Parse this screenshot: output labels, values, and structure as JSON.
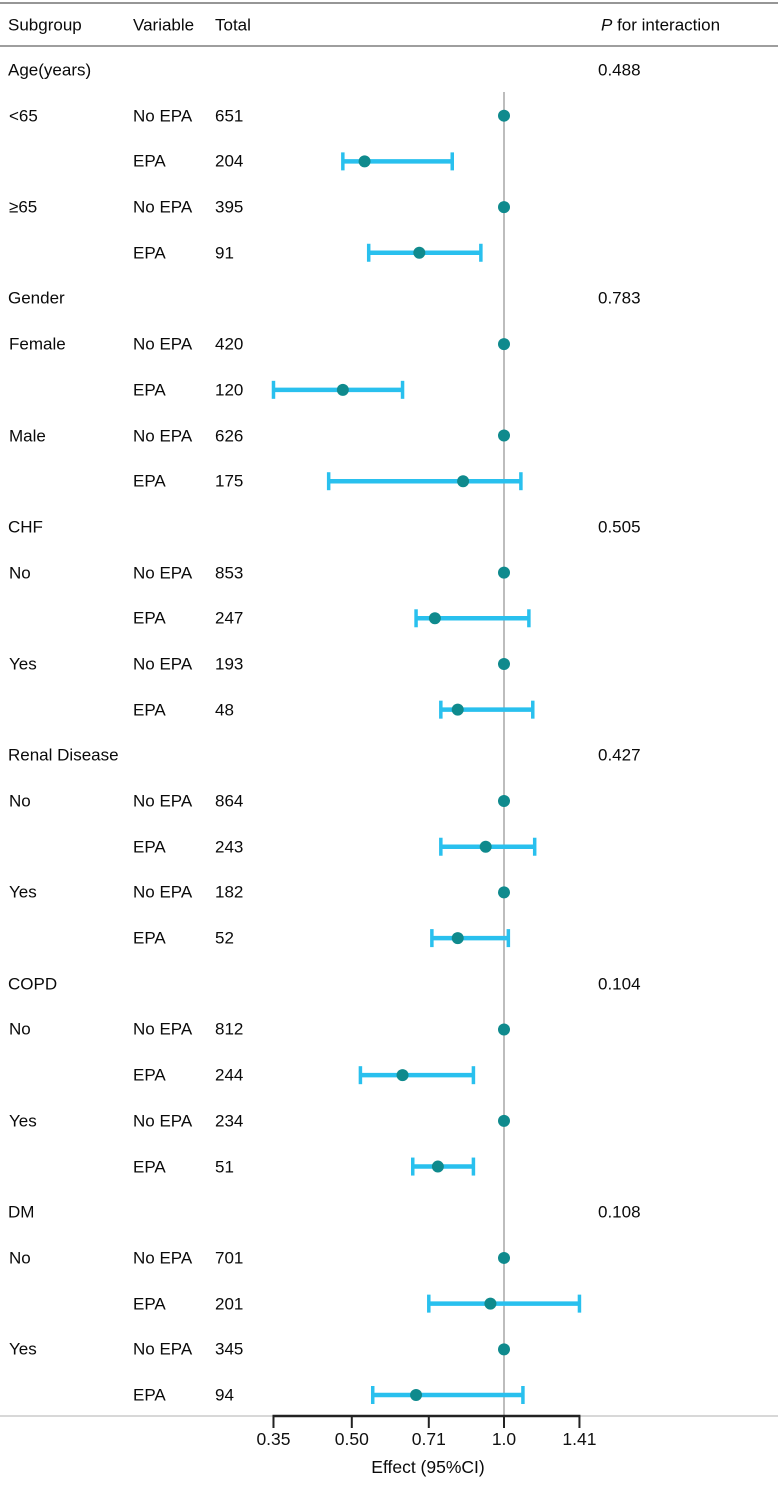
{
  "header": {
    "subgroup": "Subgroup",
    "variable": "Variable",
    "total": "Total",
    "p_italic": "P",
    "p_rest": " for interaction"
  },
  "colors": {
    "ci_line": "#29c0ee",
    "point": "#0f8a8d",
    "reference_line": "#bdbdbd",
    "axis": "#222222",
    "axis_baseline_gray": "#cbcbcb",
    "rule": "#969696"
  },
  "chart_data": {
    "type": "scatter",
    "variant": "forest-plot",
    "title": "",
    "xlabel": "Effect (95%CI)",
    "x_scale": "log2",
    "reference_line": 1.0,
    "x_ticks": [
      0.35,
      0.5,
      0.71,
      1.0,
      1.41
    ],
    "x_tick_labels": [
      "0.35",
      "0.50",
      "0.71",
      "1.0",
      "1.41"
    ],
    "x_range": [
      0.35,
      1.41
    ],
    "grid": false,
    "legend": false,
    "rows": [
      {
        "type": "section",
        "subgroup": "Age(years)",
        "p": "0.488"
      },
      {
        "type": "data",
        "subgroup": "<65",
        "variable": "No EPA",
        "total": "651",
        "ref": true,
        "est": 1.0
      },
      {
        "type": "data",
        "subgroup": "",
        "variable": "EPA",
        "total": "204",
        "est": 0.53,
        "lo": 0.48,
        "hi": 0.79
      },
      {
        "type": "data",
        "subgroup": "≥65",
        "variable": "No EPA",
        "total": "395",
        "ref": true,
        "est": 1.0
      },
      {
        "type": "data",
        "subgroup": "",
        "variable": "EPA",
        "total": "91",
        "est": 0.68,
        "lo": 0.54,
        "hi": 0.9
      },
      {
        "type": "section",
        "subgroup": "Gender",
        "p": "0.783"
      },
      {
        "type": "data",
        "subgroup": "Female",
        "variable": "No EPA",
        "total": "420",
        "ref": true,
        "est": 1.0
      },
      {
        "type": "data",
        "subgroup": "",
        "variable": "EPA",
        "total": "120",
        "est": 0.48,
        "lo": 0.35,
        "hi": 0.63
      },
      {
        "type": "data",
        "subgroup": "Male",
        "variable": "No EPA",
        "total": "626",
        "ref": true,
        "est": 1.0
      },
      {
        "type": "data",
        "subgroup": "",
        "variable": "EPA",
        "total": "175",
        "est": 0.83,
        "lo": 0.45,
        "hi": 1.08
      },
      {
        "type": "section",
        "subgroup": "CHF",
        "p": "0.505"
      },
      {
        "type": "data",
        "subgroup": "No",
        "variable": "No EPA",
        "total": "853",
        "ref": true,
        "est": 1.0
      },
      {
        "type": "data",
        "subgroup": "",
        "variable": "EPA",
        "total": "247",
        "est": 0.73,
        "lo": 0.67,
        "hi": 1.12
      },
      {
        "type": "data",
        "subgroup": "Yes",
        "variable": "No EPA",
        "total": "193",
        "ref": true,
        "est": 1.0
      },
      {
        "type": "data",
        "subgroup": "",
        "variable": "EPA",
        "total": "48",
        "est": 0.81,
        "lo": 0.75,
        "hi": 1.14
      },
      {
        "type": "section",
        "subgroup": "Renal Disease",
        "p": "0.427"
      },
      {
        "type": "data",
        "subgroup": "No",
        "variable": "No EPA",
        "total": "864",
        "ref": true,
        "est": 1.0
      },
      {
        "type": "data",
        "subgroup": "",
        "variable": "EPA",
        "total": "243",
        "est": 0.92,
        "lo": 0.75,
        "hi": 1.15
      },
      {
        "type": "data",
        "subgroup": "Yes",
        "variable": "No EPA",
        "total": "182",
        "ref": true,
        "est": 1.0
      },
      {
        "type": "data",
        "subgroup": "",
        "variable": "EPA",
        "total": "52",
        "est": 0.81,
        "lo": 0.72,
        "hi": 1.02
      },
      {
        "type": "section",
        "subgroup": "COPD",
        "p": "0.104"
      },
      {
        "type": "data",
        "subgroup": "No",
        "variable": "No EPA",
        "total": "812",
        "ref": true,
        "est": 1.0
      },
      {
        "type": "data",
        "subgroup": "",
        "variable": "EPA",
        "total": "244",
        "est": 0.63,
        "lo": 0.52,
        "hi": 0.87
      },
      {
        "type": "data",
        "subgroup": "Yes",
        "variable": "No EPA",
        "total": "234",
        "ref": true,
        "est": 1.0
      },
      {
        "type": "data",
        "subgroup": "",
        "variable": "EPA",
        "total": "51",
        "est": 0.74,
        "lo": 0.66,
        "hi": 0.87
      },
      {
        "type": "section",
        "subgroup": "DM",
        "p": "0.108"
      },
      {
        "type": "data",
        "subgroup": "No",
        "variable": "No EPA",
        "total": "701",
        "ref": true,
        "est": 1.0
      },
      {
        "type": "data",
        "subgroup": "",
        "variable": "EPA",
        "total": "201",
        "est": 0.94,
        "lo": 0.71,
        "hi": 1.41
      },
      {
        "type": "data",
        "subgroup": "Yes",
        "variable": "No EPA",
        "total": "345",
        "ref": true,
        "est": 1.0
      },
      {
        "type": "data",
        "subgroup": "",
        "variable": "EPA",
        "total": "94",
        "est": 0.67,
        "lo": 0.55,
        "hi": 1.09
      }
    ]
  }
}
